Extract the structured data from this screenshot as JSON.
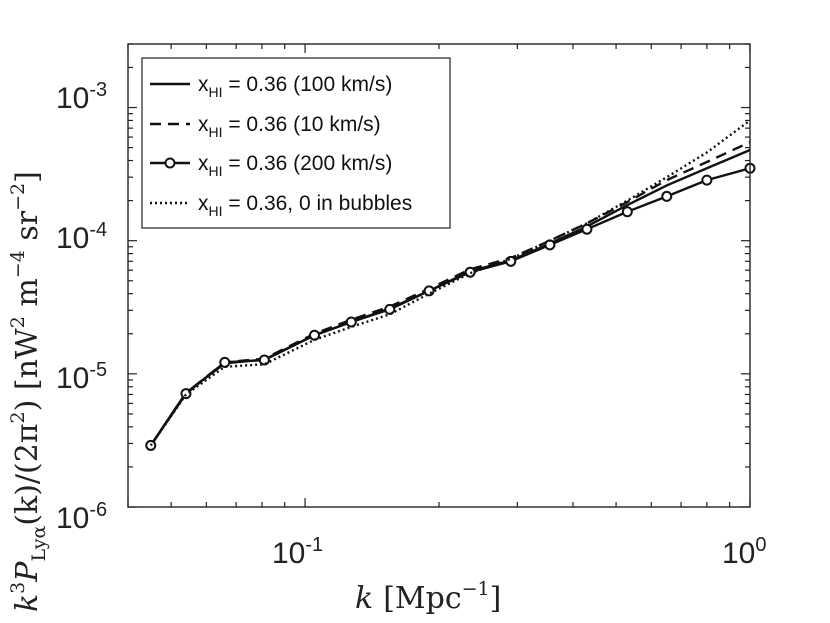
{
  "chart_data": {
    "type": "line",
    "xscale": "log",
    "yscale": "log",
    "xlim": [
      0.04,
      1.0
    ],
    "ylim": [
      1e-06,
      0.003
    ],
    "x_tick_labels": [
      {
        "base": "10",
        "exp": "-1"
      },
      {
        "base": "10",
        "exp": "0"
      }
    ],
    "y_tick_labels": [
      {
        "base": "10",
        "exp": "-6"
      },
      {
        "base": "10",
        "exp": "-5"
      },
      {
        "base": "10",
        "exp": "-4"
      },
      {
        "base": "10",
        "exp": "-3"
      }
    ],
    "xlabel": {
      "var": "k",
      "unit_open": "[Mpc",
      "unit_exp": "−1",
      "unit_close": "]"
    },
    "ylabel": {
      "k": "k",
      "k_exp": "3",
      "P": "P",
      "P_sub": "Lyα",
      "arg": "(k)/(2π",
      "arg_exp": "2",
      "close": ") [nW",
      "w_exp": "2",
      "m": " m",
      "m_exp": "−4",
      "sr": " sr",
      "sr_exp": "−2",
      "end": "]"
    },
    "series": [
      {
        "name": "x_HI = 0.36 (100 km/s)",
        "legend_main": "x",
        "legend_sub": "HI",
        "legend_rest": " = 0.36 (100 km/s)",
        "style": "solid",
        "x": [
          0.045,
          0.054,
          0.066,
          0.081,
          0.105,
          0.127,
          0.155,
          0.19,
          0.235,
          0.29,
          0.355,
          0.43,
          0.53,
          0.65,
          0.8,
          1.0
        ],
        "y": [
          2.9e-06,
          7.2e-06,
          1.2e-05,
          1.28e-05,
          1.95e-05,
          2.45e-05,
          3.1e-05,
          4.2e-05,
          5.9e-05,
          7.1e-05,
          9.5e-05,
          0.000128,
          0.000185,
          0.00026,
          0.00035,
          0.00048
        ]
      },
      {
        "name": "x_HI = 0.36 (10 km/s)",
        "legend_main": "x",
        "legend_sub": "HI",
        "legend_rest": " = 0.36 (10 km/s)",
        "style": "dashed",
        "x": [
          0.045,
          0.054,
          0.066,
          0.081,
          0.105,
          0.127,
          0.155,
          0.19,
          0.235,
          0.29,
          0.355,
          0.43,
          0.53,
          0.65,
          0.8,
          1.0
        ],
        "y": [
          2.9e-06,
          7.2e-06,
          1.22e-05,
          1.3e-05,
          2e-05,
          2.55e-05,
          3.2e-05,
          4.35e-05,
          6.1e-05,
          7.4e-05,
          0.0001,
          0.000135,
          0.000195,
          0.000285,
          0.00039,
          0.00055
        ]
      },
      {
        "name": "x_HI = 0.36 (200 km/s)",
        "legend_main": "x",
        "legend_sub": "HI",
        "legend_rest": " = 0.36 (200 km/s)",
        "style": "solid-circle",
        "x": [
          0.045,
          0.054,
          0.066,
          0.081,
          0.105,
          0.127,
          0.155,
          0.19,
          0.235,
          0.29,
          0.355,
          0.43,
          0.53,
          0.65,
          0.8,
          1.0
        ],
        "y": [
          2.9e-06,
          7.1e-06,
          1.22e-05,
          1.27e-05,
          1.95e-05,
          2.45e-05,
          3.05e-05,
          4.2e-05,
          5.8e-05,
          7e-05,
          9.3e-05,
          0.000122,
          0.000165,
          0.000215,
          0.000285,
          0.00035
        ]
      },
      {
        "name": "x_HI = 0.36, 0 in bubbles",
        "legend_main": "x",
        "legend_sub": "HI",
        "legend_rest": " = 0.36, 0 in bubbles",
        "style": "dotted",
        "x": [
          0.045,
          0.054,
          0.066,
          0.081,
          0.105,
          0.127,
          0.155,
          0.19,
          0.235,
          0.29,
          0.355,
          0.43,
          0.53,
          0.65,
          0.8,
          1.0
        ],
        "y": [
          2.9e-06,
          7e-06,
          1.13e-05,
          1.18e-05,
          1.8e-05,
          2.25e-05,
          2.8e-05,
          4e-05,
          5.7e-05,
          7.3e-05,
          0.0001,
          0.000135,
          0.0002,
          0.0003,
          0.00046,
          0.0008
        ]
      }
    ],
    "legend_position": "top-left",
    "grid": false
  }
}
